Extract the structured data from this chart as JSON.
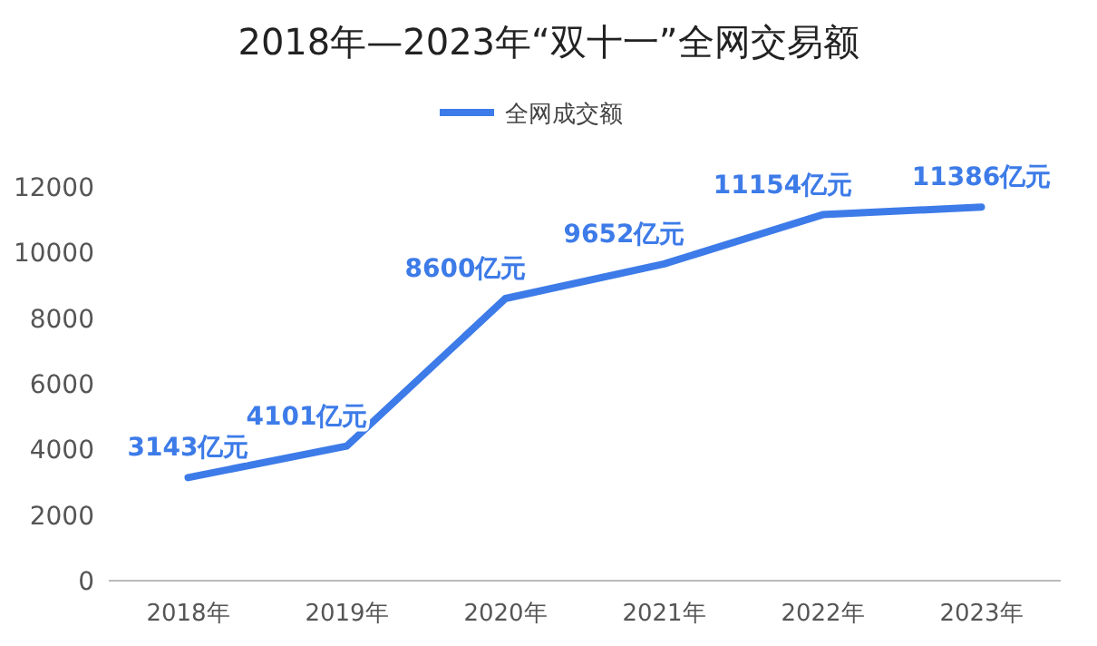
{
  "chart_data": {
    "type": "line",
    "title": "2018年—2023年“双十一”全网交易额",
    "categories": [
      "2018年",
      "2019年",
      "2020年",
      "2021年",
      "2022年",
      "2023年"
    ],
    "series": [
      {
        "name": "全网成交额",
        "color": "#3d7be8",
        "values": [
          3143,
          4101,
          8600,
          9652,
          11154,
          11386
        ],
        "value_labels": [
          "3143亿元",
          "4101亿元",
          "8600亿元",
          "9652亿元",
          "11154亿元",
          "11386亿元"
        ]
      }
    ],
    "ylim": [
      0,
      12000
    ],
    "yticks": [
      0,
      2000,
      4000,
      6000,
      8000,
      10000,
      12000
    ],
    "grid": false,
    "legend": "top",
    "marker": "none",
    "line_style": "solid"
  }
}
